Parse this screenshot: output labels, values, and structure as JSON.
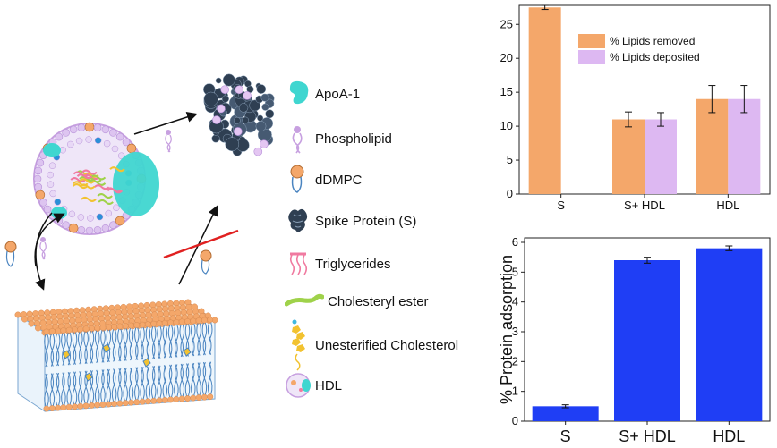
{
  "legend": {
    "items": [
      {
        "label": "ApoA-1",
        "icon": "apoa1-icon"
      },
      {
        "label": "Phospholipid",
        "icon": "phospholipid-icon"
      },
      {
        "label": "dDMPC",
        "icon": "ddmpc-icon"
      },
      {
        "label": "Spike Protein (S)",
        "icon": "spike-protein-icon"
      },
      {
        "label": "Triglycerides",
        "icon": "triglyceride-icon"
      },
      {
        "label": "Cholesteryl ester",
        "icon": "cholesteryl-ester-icon"
      },
      {
        "label": "Unesterified Cholesterol",
        "icon": "unesterified-cholesterol-icon"
      },
      {
        "label": "HDL",
        "icon": "hdl-icon"
      }
    ]
  },
  "colors": {
    "removed": "#f4a76a",
    "deposited": "#ddb8f2",
    "adsorption": "#1f3ef5",
    "apoa1": "#3fd6d0",
    "lipid_head": "#f4a76a",
    "phospholipid": "#c7a0e0",
    "triglyceride": "#f07aa0",
    "cholesteryl": "#9fd24a",
    "cholesterol": "#f2c230",
    "spike": "#2f3f52"
  },
  "chart_data": [
    {
      "type": "bar",
      "categories": [
        "S",
        "S+ HDL",
        "HDL"
      ],
      "series": [
        {
          "name": "% Lipids removed",
          "values": [
            27.5,
            11,
            14
          ],
          "errors": [
            0.3,
            1.1,
            2.0
          ]
        },
        {
          "name": "% Lipids deposited",
          "values": [
            null,
            11,
            14
          ],
          "errors": [
            null,
            1.0,
            2.0
          ]
        }
      ],
      "ylim": [
        0,
        27.8
      ],
      "yticks": [
        0,
        5,
        10,
        15,
        20,
        25
      ],
      "xlabel": "",
      "ylabel": "",
      "legend_position": "top-right"
    },
    {
      "type": "bar",
      "categories": [
        "S",
        "S+ HDL",
        "HDL"
      ],
      "series": [
        {
          "values": [
            0.5,
            5.4,
            5.8
          ],
          "errors": [
            0.05,
            0.1,
            0.08
          ]
        }
      ],
      "ylim": [
        0,
        6.15
      ],
      "yticks": [
        0,
        1,
        2,
        3,
        4,
        5,
        6
      ],
      "xlabel": "",
      "ylabel": "% Protein adsorption"
    }
  ]
}
